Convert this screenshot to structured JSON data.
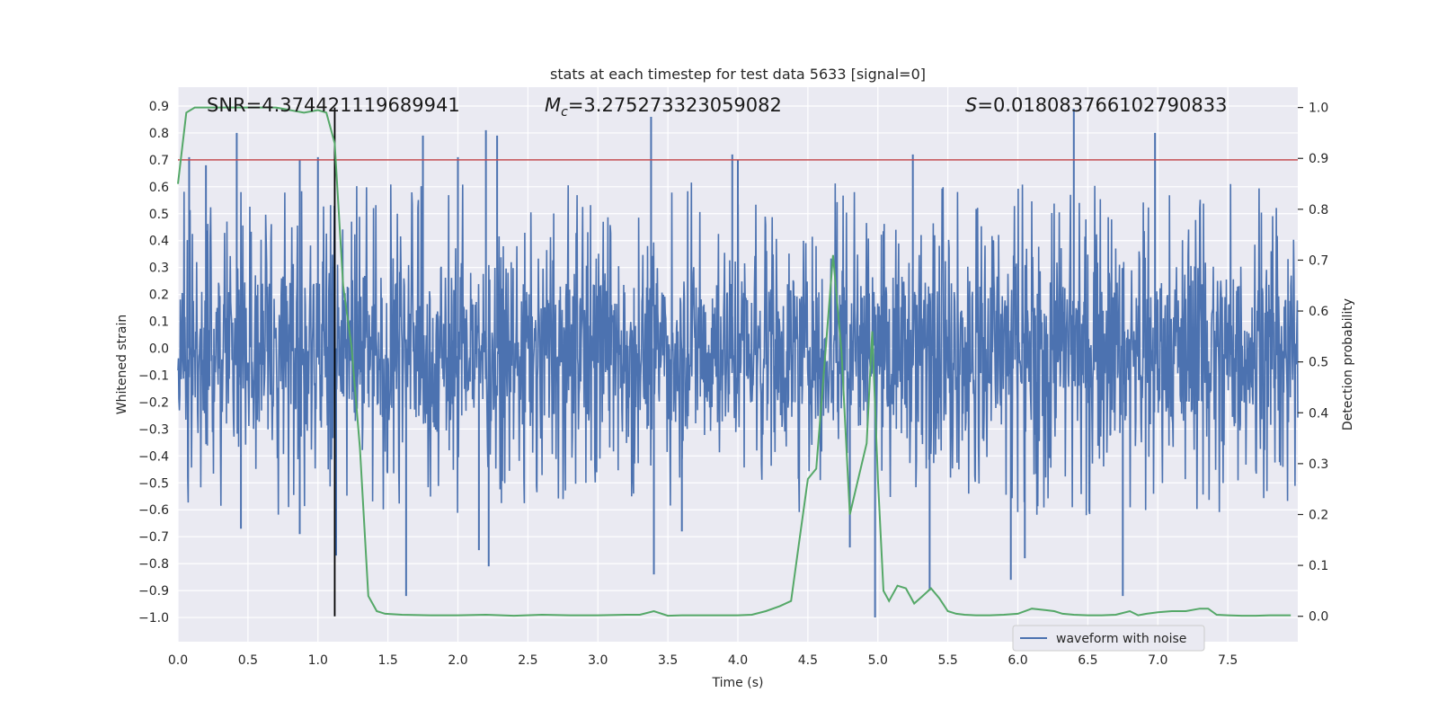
{
  "chart_data": {
    "type": "line",
    "title": "stats at each timestep for test data 5633 [signal=0]",
    "xlabel": "Time (s)",
    "ylabel_left": "Whitened strain",
    "ylabel_right": "Detection probability",
    "xlim": [
      0.0,
      8.0
    ],
    "ylim_left": [
      -1.09,
      0.97
    ],
    "ylim_right": [
      -0.05,
      1.04
    ],
    "x_ticks": [
      "0.0",
      "0.5",
      "1.0",
      "1.5",
      "2.0",
      "2.5",
      "3.0",
      "3.5",
      "4.0",
      "4.5",
      "5.0",
      "5.5",
      "6.0",
      "6.5",
      "7.0",
      "7.5"
    ],
    "x_tick_values": [
      0.0,
      0.5,
      1.0,
      1.5,
      2.0,
      2.5,
      3.0,
      3.5,
      4.0,
      4.5,
      5.0,
      5.5,
      6.0,
      6.5,
      7.0,
      7.5
    ],
    "y_left_ticks": [
      "0.9",
      "0.8",
      "0.7",
      "0.6",
      "0.5",
      "0.4",
      "0.3",
      "0.2",
      "0.1",
      "0.0",
      "−0.1",
      "−0.2",
      "−0.3",
      "−0.4",
      "−0.5",
      "−0.6",
      "−0.7",
      "−0.8",
      "−0.9",
      "−1.0"
    ],
    "y_left_tick_values": [
      0.9,
      0.8,
      0.7,
      0.6,
      0.5,
      0.4,
      0.3,
      0.2,
      0.1,
      0.0,
      -0.1,
      -0.2,
      -0.3,
      -0.4,
      -0.5,
      -0.6,
      -0.7,
      -0.8,
      -0.9,
      -1.0
    ],
    "y_right_ticks": [
      "1.0",
      "0.9",
      "0.8",
      "0.7",
      "0.6",
      "0.5",
      "0.4",
      "0.3",
      "0.2",
      "0.1",
      "0.0"
    ],
    "y_right_tick_values": [
      1.0,
      0.9,
      0.8,
      0.7,
      0.6,
      0.5,
      0.4,
      0.3,
      0.2,
      0.1,
      0.0
    ],
    "threshold_line": {
      "value": 0.7,
      "axis": "left",
      "color": "#c44e52"
    },
    "marker_line": {
      "x": 1.12,
      "color": "#000000"
    },
    "annotations": {
      "snr": "SNR=4.374421119689941",
      "mc_symbol": "M",
      "mc_sub": "c",
      "mc_value": "=3.275273323059082",
      "s_symbol": "S",
      "s_value": "=0.018083766102790833"
    },
    "series": [
      {
        "name": "waveform with noise",
        "axis": "left",
        "color": "#4c72b0",
        "kind": "noise",
        "envelope_upper_typical": 0.45,
        "envelope_lower_typical": -0.45,
        "peaks": [
          {
            "x": 0.42,
            "y": 0.8
          },
          {
            "x": 0.2,
            "y": 0.68
          },
          {
            "x": 0.08,
            "y": 0.71
          },
          {
            "x": 0.87,
            "y": 0.7
          },
          {
            "x": 1.75,
            "y": 0.79
          },
          {
            "x": 2.0,
            "y": 0.71
          },
          {
            "x": 2.2,
            "y": 0.81
          },
          {
            "x": 2.28,
            "y": 0.79
          },
          {
            "x": 3.38,
            "y": 0.86
          },
          {
            "x": 3.96,
            "y": 0.72
          },
          {
            "x": 4.0,
            "y": 0.7
          },
          {
            "x": 5.25,
            "y": 0.72
          },
          {
            "x": 6.4,
            "y": 0.89
          },
          {
            "x": 6.98,
            "y": 0.8
          },
          {
            "x": 1.0,
            "y": 0.71
          },
          {
            "x": 0.45,
            "y": -0.67
          },
          {
            "x": 0.87,
            "y": -0.69
          },
          {
            "x": 1.13,
            "y": -0.77
          },
          {
            "x": 1.63,
            "y": -0.92
          },
          {
            "x": 2.15,
            "y": -0.75
          },
          {
            "x": 2.22,
            "y": -0.81
          },
          {
            "x": 3.4,
            "y": -0.84
          },
          {
            "x": 4.98,
            "y": -1.0
          },
          {
            "x": 5.37,
            "y": -0.9
          },
          {
            "x": 5.95,
            "y": -0.86
          },
          {
            "x": 6.05,
            "y": -0.78
          },
          {
            "x": 6.75,
            "y": -0.92
          },
          {
            "x": 3.6,
            "y": -0.68
          },
          {
            "x": 4.8,
            "y": -0.74
          }
        ]
      },
      {
        "name": "",
        "axis": "right",
        "color": "#55a868",
        "kind": "line",
        "x": [
          0.0,
          0.06,
          0.12,
          0.18,
          0.3,
          0.5,
          0.7,
          0.9,
          1.0,
          1.06,
          1.12,
          1.18,
          1.24,
          1.3,
          1.36,
          1.42,
          1.48,
          1.6,
          1.8,
          2.0,
          2.2,
          2.4,
          2.6,
          2.8,
          3.0,
          3.2,
          3.3,
          3.4,
          3.5,
          3.6,
          3.8,
          4.0,
          4.1,
          4.2,
          4.3,
          4.38,
          4.44,
          4.5,
          4.56,
          4.62,
          4.68,
          4.74,
          4.8,
          4.86,
          4.92,
          4.96,
          5.0,
          5.04,
          5.08,
          5.14,
          5.2,
          5.26,
          5.32,
          5.38,
          5.44,
          5.5,
          5.56,
          5.62,
          5.7,
          5.8,
          5.9,
          6.0,
          6.1,
          6.2,
          6.26,
          6.32,
          6.4,
          6.5,
          6.6,
          6.7,
          6.8,
          6.86,
          6.92,
          7.0,
          7.1,
          7.2,
          7.3,
          7.36,
          7.42,
          7.5,
          7.6,
          7.7,
          7.8,
          7.95
        ],
        "y": [
          0.85,
          0.99,
          1.0,
          1.0,
          1.0,
          1.0,
          1.0,
          0.99,
          0.995,
          0.99,
          0.93,
          0.65,
          0.53,
          0.33,
          0.04,
          0.01,
          0.005,
          0.003,
          0.002,
          0.002,
          0.003,
          0.001,
          0.003,
          0.002,
          0.002,
          0.003,
          0.003,
          0.01,
          0.001,
          0.002,
          0.002,
          0.002,
          0.003,
          0.01,
          0.02,
          0.03,
          0.15,
          0.27,
          0.29,
          0.5,
          0.71,
          0.52,
          0.2,
          0.27,
          0.34,
          0.56,
          0.27,
          0.05,
          0.03,
          0.06,
          0.055,
          0.025,
          0.04,
          0.055,
          0.035,
          0.01,
          0.005,
          0.003,
          0.002,
          0.002,
          0.003,
          0.005,
          0.015,
          0.012,
          0.01,
          0.005,
          0.003,
          0.002,
          0.002,
          0.003,
          0.01,
          0.002,
          0.005,
          0.008,
          0.01,
          0.01,
          0.015,
          0.015,
          0.003,
          0.002,
          0.001,
          0.001,
          0.002,
          0.002
        ]
      }
    ],
    "legend": {
      "entries": [
        "waveform with noise"
      ],
      "placement": "lower-right"
    },
    "grid": true
  },
  "colors": {
    "plot_bg": "#eaeaf2",
    "grid": "#ffffff",
    "noise": "#4c72b0",
    "probability": "#55a868",
    "threshold": "#c44e52",
    "marker": "#000000"
  }
}
